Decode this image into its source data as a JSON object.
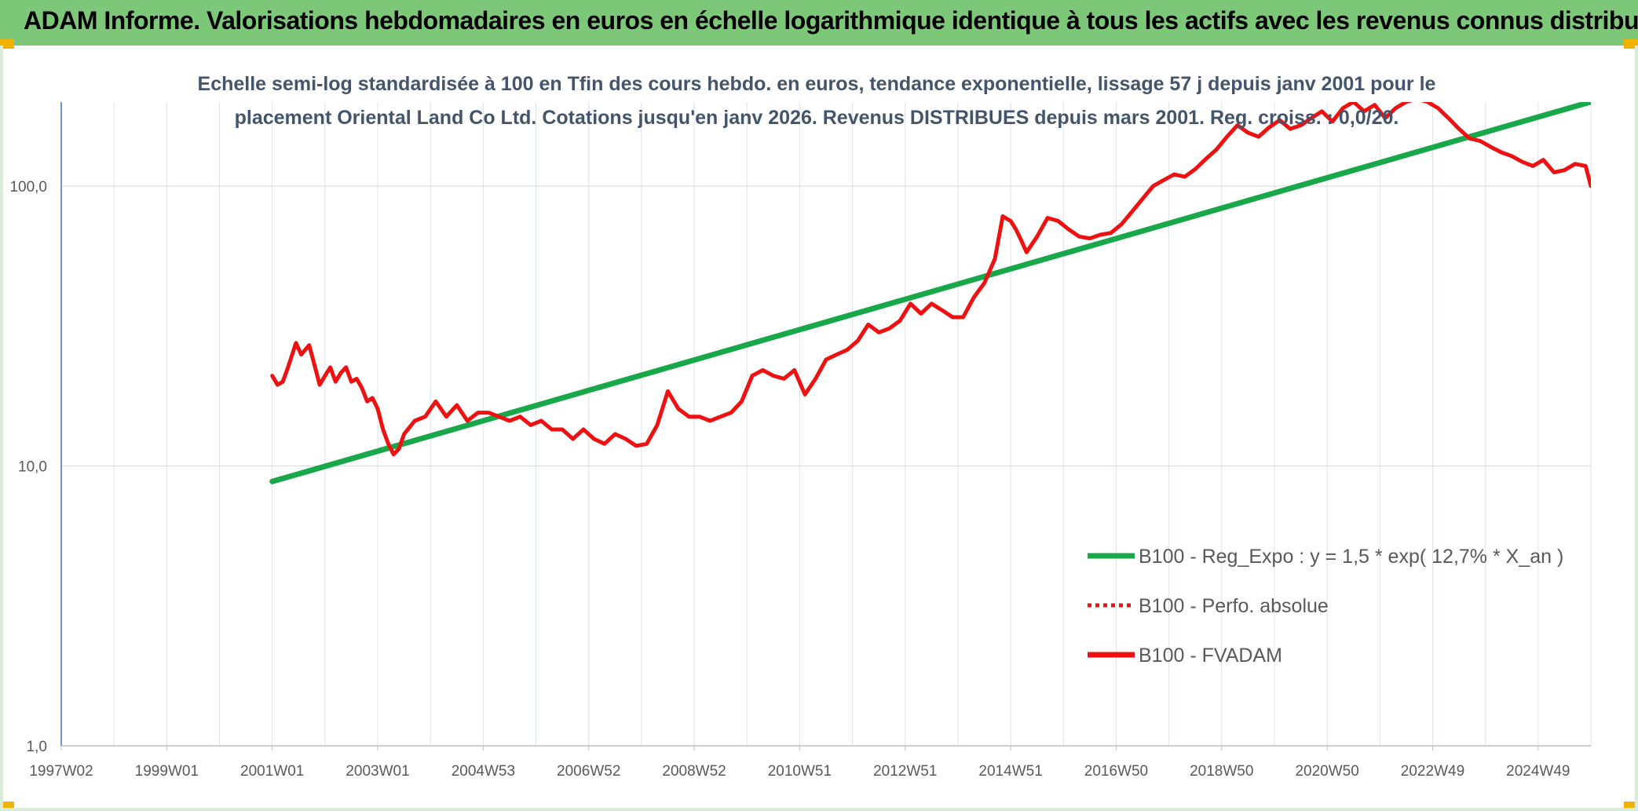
{
  "banner": {
    "title": "ADAM Informe. Valorisations hebdomadaires en euros en échelle logarithmique identique à tous les actifs avec les revenus connus distribués",
    "background": "#7dc878"
  },
  "chart_data": {
    "type": "line",
    "title_lines": [
      "Echelle semi-log standardisée à 100 en Tfin des cours hebdo. en euros, tendance exponentielle, lissage 57 j depuis janv 2001 pour le",
      "placement Oriental Land Co Ltd. Cotations jusqu'en janv 2026. Revenus DISTRIBUES depuis mars 2001. Reg. croiss. : 0,0/20."
    ],
    "y_scale": "log",
    "ylim": [
      1,
      200
    ],
    "y_ticks": [
      {
        "value": 1,
        "label": "1,0"
      },
      {
        "value": 10,
        "label": "10,0"
      },
      {
        "value": 100,
        "label": "100,0"
      }
    ],
    "xlim": [
      1997.0,
      2026.0
    ],
    "x_ticks": [
      {
        "value": 1997.0,
        "label": "1997W02"
      },
      {
        "value": 1999.0,
        "label": "1999W01"
      },
      {
        "value": 2001.0,
        "label": "2001W01"
      },
      {
        "value": 2003.0,
        "label": "2003W01"
      },
      {
        "value": 2005.0,
        "label": "2004W53"
      },
      {
        "value": 2007.0,
        "label": "2006W52"
      },
      {
        "value": 2009.0,
        "label": "2008W52"
      },
      {
        "value": 2011.0,
        "label": "2010W51"
      },
      {
        "value": 2013.0,
        "label": "2012W51"
      },
      {
        "value": 2015.0,
        "label": "2014W51"
      },
      {
        "value": 2017.0,
        "label": "2016W50"
      },
      {
        "value": 2019.0,
        "label": "2018W50"
      },
      {
        "value": 2021.0,
        "label": "2020W50"
      },
      {
        "value": 2023.0,
        "label": "2022W49"
      },
      {
        "value": 2025.0,
        "label": "2024W49"
      }
    ],
    "grid": true,
    "legend_position": "right",
    "series": [
      {
        "name": "B100 - Reg_Expo : y = 1,5 * exp( 12,7% *  X_an )",
        "color": "#18a84a",
        "style": "solid",
        "x": [
          2001.0,
          2026.0
        ],
        "y": [
          8.8,
          200
        ]
      },
      {
        "name": "B100 - Perfo. absolue",
        "color": "#ee1111",
        "style": "dotted",
        "x": [],
        "y": []
      },
      {
        "name": "B100 - FVADAM",
        "color": "#ee1111",
        "style": "solid",
        "x": [
          2001.0,
          2001.1,
          2001.2,
          2001.3,
          2001.45,
          2001.55,
          2001.7,
          2001.8,
          2001.9,
          2002.0,
          2002.1,
          2002.2,
          2002.3,
          2002.4,
          2002.5,
          2002.6,
          2002.7,
          2002.8,
          2002.9,
          2003.0,
          2003.1,
          2003.2,
          2003.3,
          2003.4,
          2003.5,
          2003.7,
          2003.9,
          2004.1,
          2004.3,
          2004.5,
          2004.7,
          2004.9,
          2005.1,
          2005.3,
          2005.5,
          2005.7,
          2005.9,
          2006.1,
          2006.3,
          2006.5,
          2006.7,
          2006.9,
          2007.1,
          2007.3,
          2007.5,
          2007.7,
          2007.9,
          2008.1,
          2008.3,
          2008.5,
          2008.7,
          2008.9,
          2009.1,
          2009.3,
          2009.5,
          2009.7,
          2009.9,
          2010.1,
          2010.3,
          2010.5,
          2010.7,
          2010.9,
          2011.1,
          2011.3,
          2011.5,
          2011.7,
          2011.9,
          2012.1,
          2012.3,
          2012.5,
          2012.7,
          2012.9,
          2013.1,
          2013.3,
          2013.5,
          2013.7,
          2013.9,
          2014.1,
          2014.3,
          2014.5,
          2014.7,
          2014.85,
          2015.0,
          2015.1,
          2015.2,
          2015.3,
          2015.5,
          2015.7,
          2015.9,
          2016.1,
          2016.3,
          2016.5,
          2016.7,
          2016.9,
          2017.1,
          2017.3,
          2017.5,
          2017.7,
          2017.9,
          2018.1,
          2018.3,
          2018.5,
          2018.7,
          2018.9,
          2019.1,
          2019.3,
          2019.5,
          2019.7,
          2019.9,
          2020.1,
          2020.3,
          2020.5,
          2020.7,
          2020.9,
          2021.1,
          2021.3,
          2021.5,
          2021.7,
          2021.9,
          2022.1,
          2022.3,
          2022.5,
          2022.7,
          2022.9,
          2023.1,
          2023.3,
          2023.5,
          2023.7,
          2023.9,
          2024.1,
          2024.3,
          2024.5,
          2024.7,
          2024.9,
          2025.1,
          2025.3,
          2025.5,
          2025.7,
          2025.9,
          2026.0
        ],
        "y": [
          21,
          19.5,
          20,
          22.5,
          27.5,
          25,
          27,
          23,
          19.5,
          21,
          22.5,
          20,
          21.5,
          22.5,
          20,
          20.5,
          19,
          17,
          17.5,
          16,
          13.5,
          12,
          11,
          11.5,
          13,
          14.5,
          15,
          17,
          15,
          16.5,
          14.5,
          15.5,
          15.5,
          15,
          14.5,
          15,
          14,
          14.5,
          13.5,
          13.5,
          12.5,
          13.5,
          12.5,
          12,
          13,
          12.5,
          11.8,
          12,
          14,
          18.5,
          16,
          15,
          15,
          14.5,
          15,
          15.5,
          17,
          21,
          22,
          21,
          20.5,
          22,
          18,
          20.5,
          24,
          25,
          26,
          28,
          32,
          30,
          31,
          33,
          38,
          35,
          38,
          36,
          34,
          34,
          40,
          45,
          55,
          78,
          75,
          70,
          64,
          58,
          66,
          77,
          75,
          70,
          66,
          65,
          67,
          68,
          73,
          81,
          90,
          100,
          105,
          110,
          108,
          115,
          125,
          135,
          150,
          165,
          155,
          150,
          162,
          172,
          160,
          165,
          175,
          185,
          170,
          190,
          200,
          185,
          195,
          175,
          190,
          200,
          205,
          200,
          190,
          175,
          160,
          148,
          145,
          138,
          132,
          128,
          122,
          118,
          124,
          112,
          114,
          120,
          118,
          100
        ]
      }
    ]
  }
}
